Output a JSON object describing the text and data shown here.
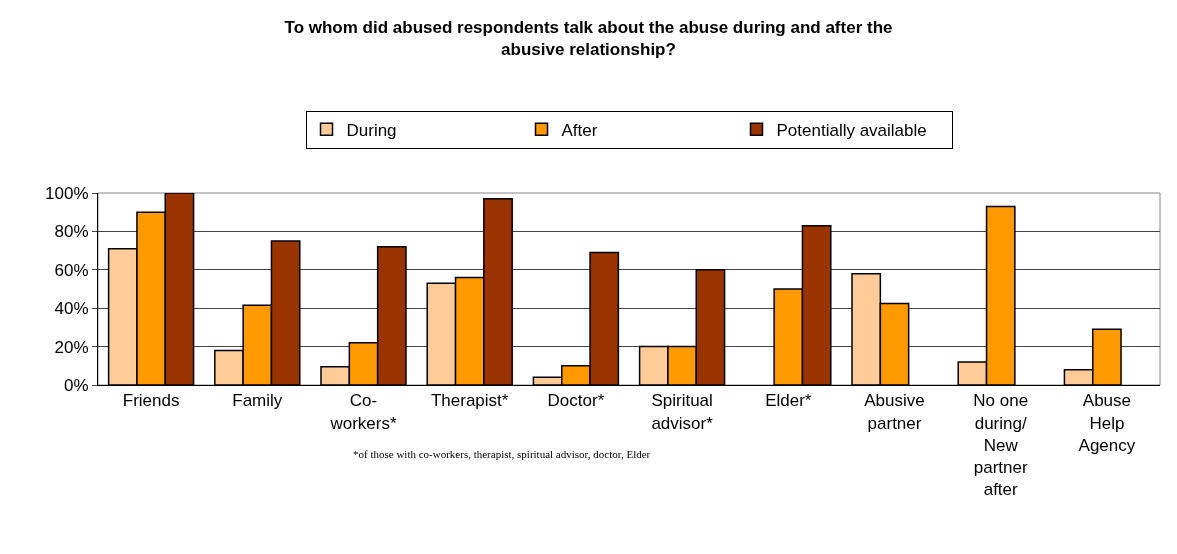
{
  "chart_data": {
    "type": "bar",
    "title": "To whom did abused respondents talk about the abuse during and after the abusive relationship?",
    "categories": [
      "Friends",
      "Family",
      "Co-workers*",
      "Therapist*",
      "Doctor*",
      "Spiritual advisor*",
      "Elder*",
      "Abusive partner",
      "No one during/ New partner after",
      "Abuse Help Agency"
    ],
    "series": [
      {
        "name": "During",
        "color": "#ffcc99",
        "values": [
          71,
          18,
          9.5,
          53,
          4,
          20,
          null,
          58,
          12,
          8
        ]
      },
      {
        "name": "After",
        "color": "#ff9900",
        "values": [
          90,
          41.5,
          22,
          56,
          10,
          20,
          50,
          42.5,
          93,
          29
        ]
      },
      {
        "name": "Potentially available",
        "color": "#993300",
        "values": [
          100,
          75,
          72,
          97,
          69,
          60,
          83,
          null,
          null,
          null
        ]
      }
    ],
    "ylim": [
      0,
      100
    ],
    "yticks": [
      {
        "value": 0,
        "label": "0%"
      },
      {
        "value": 20,
        "label": "20%"
      },
      {
        "value": 40,
        "label": "40%"
      },
      {
        "value": 60,
        "label": "60%"
      },
      {
        "value": 80,
        "label": "80%"
      },
      {
        "value": 100,
        "label": "100%"
      }
    ],
    "grid": "y",
    "legend": "top",
    "annotations": [
      "*of those with co-workers, therapist, spiritual advisor, doctor, Elder"
    ]
  }
}
